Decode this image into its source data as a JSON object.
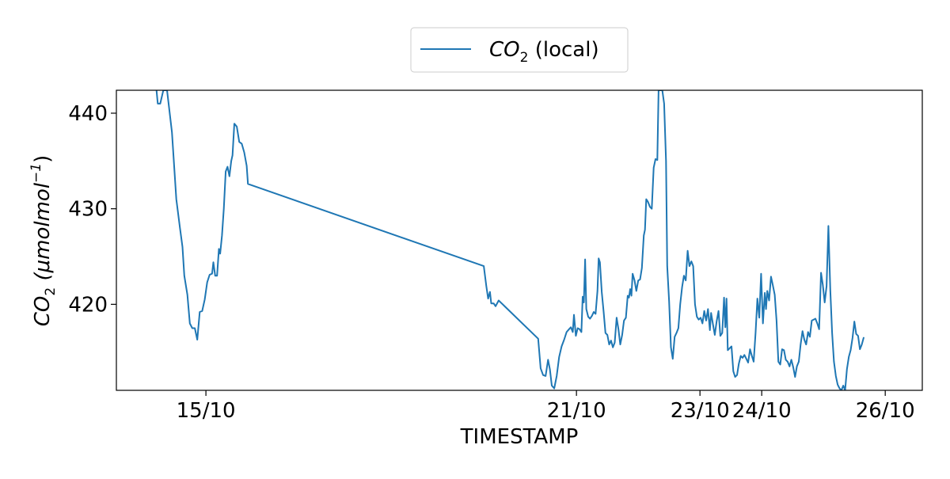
{
  "chart_data": {
    "type": "line",
    "xlabel": "TIMESTAMP",
    "ylabel": "CO",
    "ylabel_sub": "2",
    "ylabel_units": " (μmolmol",
    "ylabel_sup": "−1",
    "ylabel_close": ")",
    "x_tick_labels": [
      "15/10",
      "21/10",
      "23/10",
      "24/10",
      "26/10"
    ],
    "x_tick_days": [
      15,
      21,
      23,
      24,
      26
    ],
    "xlim_days": [
      13.55,
      26.6
    ],
    "ylim": [
      411,
      442.4
    ],
    "y_ticks": [
      420,
      430,
      440
    ],
    "y_tick_labels": [
      "420",
      "430",
      "440"
    ],
    "grid": false,
    "legend_position": "top-center",
    "series": [
      {
        "name_main": "CO",
        "name_sub": "2",
        "name_suffix": " (local)",
        "color": "#1f77b4",
        "points": [
          [
            14.2,
            442.4
          ],
          [
            14.22,
            441.0
          ],
          [
            14.26,
            441.0
          ],
          [
            14.31,
            442.4
          ],
          [
            14.37,
            442.4
          ],
          [
            14.45,
            438
          ],
          [
            14.52,
            431
          ],
          [
            14.58,
            428
          ],
          [
            14.62,
            426
          ],
          [
            14.65,
            423
          ],
          [
            14.7,
            421
          ],
          [
            14.74,
            418
          ],
          [
            14.78,
            417.5
          ],
          [
            14.82,
            417.5
          ],
          [
            14.86,
            416.3
          ],
          [
            14.9,
            419.2
          ],
          [
            14.94,
            419.3
          ],
          [
            14.98,
            420.5
          ],
          [
            15.02,
            422.3
          ],
          [
            15.06,
            423.1
          ],
          [
            15.1,
            423.2
          ],
          [
            15.12,
            424.4
          ],
          [
            15.15,
            423.0
          ],
          [
            15.18,
            423.0
          ],
          [
            15.21,
            425.8
          ],
          [
            15.23,
            425.3
          ],
          [
            15.26,
            427.2
          ],
          [
            15.29,
            430
          ],
          [
            15.32,
            433.9
          ],
          [
            15.35,
            434.4
          ],
          [
            15.38,
            433.4
          ],
          [
            15.41,
            435.0
          ],
          [
            15.43,
            435.6
          ],
          [
            15.46,
            438.9
          ],
          [
            15.5,
            438.6
          ],
          [
            15.54,
            437.0
          ],
          [
            15.58,
            436.8
          ],
          [
            15.62,
            435.9
          ],
          [
            15.66,
            434.5
          ],
          [
            15.68,
            432.6
          ],
          [
            19.5,
            424.0
          ],
          [
            19.54,
            421.9
          ],
          [
            19.57,
            420.6
          ],
          [
            19.6,
            421.3
          ],
          [
            19.62,
            420.1
          ],
          [
            19.66,
            420.1
          ],
          [
            19.69,
            419.8
          ],
          [
            19.74,
            420.4
          ],
          [
            20.38,
            416.4
          ],
          [
            20.42,
            413.3
          ],
          [
            20.46,
            412.6
          ],
          [
            20.5,
            412.5
          ],
          [
            20.54,
            414.2
          ],
          [
            20.57,
            413.2
          ],
          [
            20.6,
            411.5
          ],
          [
            20.64,
            411.2
          ],
          [
            20.68,
            412.5
          ],
          [
            20.72,
            414.5
          ],
          [
            20.76,
            415.6
          ],
          [
            20.8,
            416.3
          ],
          [
            20.84,
            417.1
          ],
          [
            20.88,
            417.4
          ],
          [
            20.91,
            417.6
          ],
          [
            20.94,
            417.1
          ],
          [
            20.96,
            418.9
          ],
          [
            20.99,
            416.7
          ],
          [
            21.02,
            417.5
          ],
          [
            21.05,
            417.4
          ],
          [
            21.08,
            417.1
          ],
          [
            21.1,
            420.8
          ],
          [
            21.12,
            420.2
          ],
          [
            21.14,
            424.7
          ],
          [
            21.16,
            419.5
          ],
          [
            21.19,
            418.7
          ],
          [
            21.22,
            418.5
          ],
          [
            21.25,
            418.8
          ],
          [
            21.28,
            419.2
          ],
          [
            21.31,
            419.0
          ],
          [
            21.34,
            421.4
          ],
          [
            21.36,
            424.8
          ],
          [
            21.38,
            424.4
          ],
          [
            21.41,
            421.3
          ],
          [
            21.44,
            419.2
          ],
          [
            21.47,
            417.0
          ],
          [
            21.5,
            416.8
          ],
          [
            21.53,
            415.8
          ],
          [
            21.56,
            416.2
          ],
          [
            21.59,
            415.5
          ],
          [
            21.62,
            416.0
          ],
          [
            21.65,
            418.6
          ],
          [
            21.68,
            417.4
          ],
          [
            21.71,
            415.8
          ],
          [
            21.74,
            416.8
          ],
          [
            21.77,
            418.3
          ],
          [
            21.8,
            418.6
          ],
          [
            21.83,
            420.9
          ],
          [
            21.85,
            420.7
          ],
          [
            21.87,
            421.6
          ],
          [
            21.89,
            420.9
          ],
          [
            21.91,
            423.2
          ],
          [
            21.94,
            422.5
          ],
          [
            21.97,
            421.4
          ],
          [
            22.0,
            422.5
          ],
          [
            22.03,
            422.6
          ],
          [
            22.06,
            423.8
          ],
          [
            22.09,
            427.2
          ],
          [
            22.11,
            427.8
          ],
          [
            22.13,
            431.0
          ],
          [
            22.16,
            430.7
          ],
          [
            22.19,
            430.2
          ],
          [
            22.22,
            430.0
          ],
          [
            22.25,
            434.3
          ],
          [
            22.28,
            435.2
          ],
          [
            22.31,
            435.1
          ],
          [
            22.33,
            442.4
          ],
          [
            22.36,
            442.4
          ],
          [
            22.39,
            442.4
          ],
          [
            22.42,
            441.0
          ],
          [
            22.45,
            435
          ],
          [
            22.47,
            424.0
          ],
          [
            22.5,
            420.3
          ],
          [
            22.53,
            415.5
          ],
          [
            22.56,
            414.3
          ],
          [
            22.59,
            416.6
          ],
          [
            22.62,
            417.0
          ],
          [
            22.65,
            417.5
          ],
          [
            22.68,
            420.0
          ],
          [
            22.71,
            421.8
          ],
          [
            22.74,
            423.0
          ],
          [
            22.77,
            422.5
          ],
          [
            22.8,
            425.6
          ],
          [
            22.83,
            424.0
          ],
          [
            22.86,
            424.5
          ],
          [
            22.89,
            424.0
          ],
          [
            22.92,
            420.0
          ],
          [
            22.95,
            418.7
          ],
          [
            22.98,
            418.4
          ],
          [
            23.01,
            418.6
          ],
          [
            23.04,
            418.0
          ],
          [
            23.07,
            419.3
          ],
          [
            23.1,
            418.3
          ],
          [
            23.13,
            419.5
          ],
          [
            23.16,
            417.3
          ],
          [
            23.18,
            419.1
          ],
          [
            23.21,
            417.9
          ],
          [
            23.24,
            416.8
          ],
          [
            23.27,
            418.2
          ],
          [
            23.3,
            419.3
          ],
          [
            23.33,
            416.7
          ],
          [
            23.36,
            417.0
          ],
          [
            23.39,
            420.7
          ],
          [
            23.41,
            417.6
          ],
          [
            23.43,
            420.6
          ],
          [
            23.45,
            415.2
          ],
          [
            23.48,
            415.4
          ],
          [
            23.51,
            415.6
          ],
          [
            23.54,
            413.0
          ],
          [
            23.57,
            412.4
          ],
          [
            23.6,
            412.6
          ],
          [
            23.63,
            413.8
          ],
          [
            23.66,
            414.6
          ],
          [
            23.69,
            414.4
          ],
          [
            23.72,
            414.7
          ],
          [
            23.75,
            414.3
          ],
          [
            23.78,
            413.9
          ],
          [
            23.81,
            415.3
          ],
          [
            23.84,
            414.6
          ],
          [
            23.87,
            414.0
          ],
          [
            23.9,
            417.0
          ],
          [
            23.93,
            420.6
          ],
          [
            23.96,
            418.6
          ],
          [
            23.99,
            423.2
          ],
          [
            24.02,
            418.0
          ],
          [
            24.05,
            421.2
          ],
          [
            24.07,
            419.5
          ],
          [
            24.09,
            421.4
          ],
          [
            24.12,
            420.4
          ],
          [
            24.15,
            422.9
          ],
          [
            24.18,
            422.0
          ],
          [
            24.21,
            421.0
          ],
          [
            24.24,
            418.3
          ],
          [
            24.27,
            414.0
          ],
          [
            24.3,
            413.7
          ],
          [
            24.33,
            415.3
          ],
          [
            24.36,
            415.2
          ],
          [
            24.39,
            414.2
          ],
          [
            24.42,
            414.0
          ],
          [
            24.45,
            413.5
          ],
          [
            24.48,
            414.2
          ],
          [
            24.51,
            413.4
          ],
          [
            24.54,
            412.4
          ],
          [
            24.57,
            413.5
          ],
          [
            24.6,
            414.0
          ],
          [
            24.63,
            415.8
          ],
          [
            24.66,
            417.2
          ],
          [
            24.69,
            416.3
          ],
          [
            24.72,
            415.8
          ],
          [
            24.75,
            417.1
          ],
          [
            24.78,
            416.6
          ],
          [
            24.81,
            418.3
          ],
          [
            24.84,
            418.4
          ],
          [
            24.87,
            418.5
          ],
          [
            24.9,
            418.0
          ],
          [
            24.93,
            417.4
          ],
          [
            24.96,
            423.3
          ],
          [
            24.99,
            422.0
          ],
          [
            25.02,
            420.2
          ],
          [
            25.05,
            421.9
          ],
          [
            25.08,
            428.2
          ],
          [
            25.11,
            421.5
          ],
          [
            25.14,
            417.0
          ],
          [
            25.17,
            414.0
          ],
          [
            25.2,
            412.5
          ],
          [
            25.23,
            411.6
          ],
          [
            25.26,
            411.2
          ],
          [
            25.29,
            411.0
          ],
          [
            25.32,
            411.5
          ],
          [
            25.35,
            411.0
          ],
          [
            25.38,
            413.2
          ],
          [
            25.41,
            414.5
          ],
          [
            25.44,
            415.2
          ],
          [
            25.47,
            416.5
          ],
          [
            25.5,
            418.2
          ],
          [
            25.53,
            416.9
          ],
          [
            25.56,
            416.7
          ],
          [
            25.59,
            415.3
          ],
          [
            25.62,
            415.8
          ],
          [
            25.65,
            416.5
          ]
        ]
      }
    ]
  }
}
